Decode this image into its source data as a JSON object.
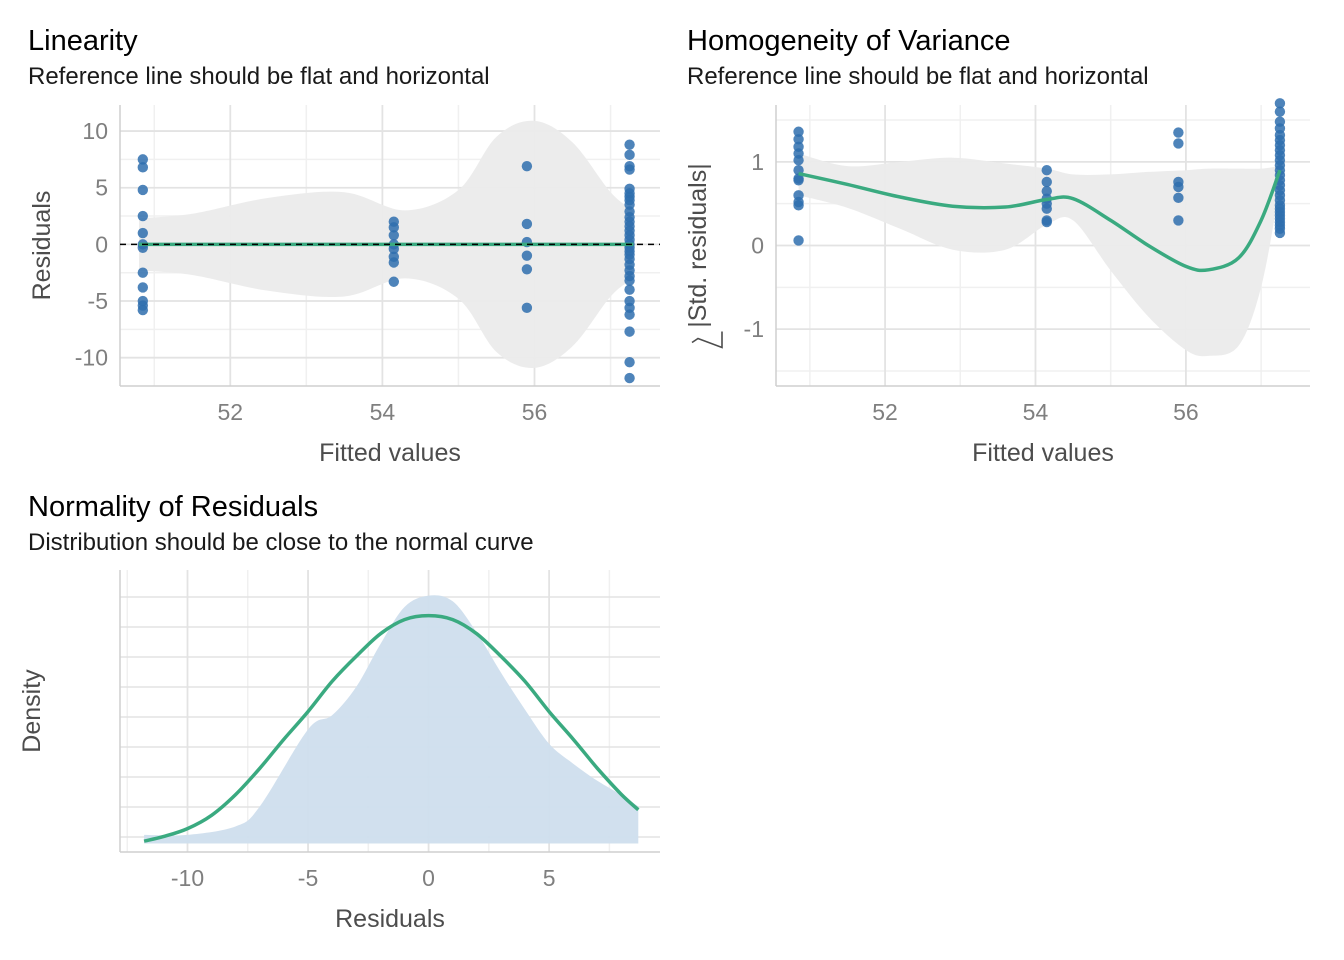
{
  "chart_data": [
    {
      "id": "linearity",
      "type": "scatter",
      "title": "Linearity",
      "subtitle": "Reference line should be flat and horizontal",
      "xlabel": "Fitted values",
      "ylabel": "Residuals",
      "xlim": [
        50.55,
        57.65
      ],
      "ylim": [
        -12.5,
        12.3
      ],
      "xticks": [
        52,
        54,
        56
      ],
      "yticks": [
        10,
        5,
        0,
        -5,
        -10
      ],
      "grid": true,
      "colors": {
        "points": "#2f6fae",
        "smooth": "#3aaa80",
        "band": "#ebebeb",
        "reference": "#000000"
      },
      "reference_line": 0,
      "points": [
        {
          "x": 50.85,
          "y": [
            7.5,
            6.8,
            4.8,
            2.5,
            1.0,
            0.0,
            -0.3,
            -2.5,
            -3.8,
            -5.0,
            -5.4,
            -5.8
          ]
        },
        {
          "x": 54.15,
          "y": [
            2.0,
            1.5,
            0.8,
            0.0,
            -0.4,
            -1.1,
            -1.6,
            -3.3
          ]
        },
        {
          "x": 55.9,
          "y": [
            6.9,
            1.8,
            0.2,
            -1.0,
            -2.2,
            -5.6
          ]
        },
        {
          "x": 57.25,
          "y": [
            8.8,
            7.9,
            6.9,
            6.6,
            4.9,
            4.5,
            4.2,
            3.9,
            3.5,
            2.9,
            2.4,
            2.0,
            1.6,
            1.2,
            0.8,
            0.4,
            0.0,
            -0.3,
            -0.6,
            -0.9,
            -1.3,
            -1.8,
            -2.3,
            -2.8,
            -3.2,
            -4.0,
            -5.0,
            -5.6,
            -6.2,
            -7.7,
            -10.4,
            -11.8
          ]
        }
      ],
      "smooth": {
        "x": [
          50.8,
          57.3
        ],
        "y": [
          0,
          0
        ]
      },
      "band": {
        "x": [
          50.8,
          51.5,
          52.5,
          53.5,
          54.3,
          55.0,
          55.5,
          56.0,
          56.5,
          57.0,
          57.3
        ],
        "upper": [
          2.3,
          2.7,
          4.1,
          4.6,
          3.0,
          4.8,
          9.5,
          10.9,
          9.0,
          4.6,
          3.0
        ],
        "lower": [
          -2.3,
          -2.7,
          -4.1,
          -4.6,
          -3.0,
          -4.8,
          -9.5,
          -10.9,
          -9.0,
          -4.6,
          -3.0
        ]
      }
    },
    {
      "id": "homogeneity",
      "type": "scatter",
      "title": "Homogeneity of Variance",
      "subtitle": "Reference line should be flat and horizontal",
      "xlabel": "Fitted values",
      "ylabel": "|Std. residuals|",
      "xlim": [
        50.55,
        57.65
      ],
      "ylim": [
        -1.68,
        1.68
      ],
      "xticks": [
        52,
        54,
        56
      ],
      "yticks": [
        1,
        0,
        -1
      ],
      "grid": true,
      "colors": {
        "points": "#2f6fae",
        "smooth": "#3aaa80",
        "band": "#ebebeb"
      },
      "points": [
        {
          "x": 50.85,
          "y": [
            1.36,
            1.27,
            1.18,
            1.1,
            1.02,
            0.9,
            0.8,
            0.78,
            0.6,
            0.52,
            0.48,
            0.06
          ]
        },
        {
          "x": 54.15,
          "y": [
            0.9,
            0.76,
            0.65,
            0.56,
            0.5,
            0.44,
            0.3,
            0.28
          ]
        },
        {
          "x": 55.9,
          "y": [
            1.35,
            1.22,
            0.76,
            0.7,
            0.57,
            0.3
          ]
        },
        {
          "x": 57.25,
          "y": [
            1.7,
            1.6,
            1.48,
            1.4,
            1.32,
            1.26,
            1.2,
            1.14,
            1.08,
            1.02,
            0.96,
            0.9,
            0.84,
            0.78,
            0.72,
            0.66,
            0.6,
            0.54,
            0.48,
            0.44,
            0.4,
            0.36,
            0.32,
            0.28,
            0.24,
            0.2,
            0.15
          ]
        }
      ],
      "smooth": {
        "x": [
          50.85,
          51.5,
          52.2,
          52.9,
          53.6,
          54.15,
          54.5,
          55.0,
          55.5,
          56.0,
          56.3,
          56.7,
          57.0,
          57.25
        ],
        "y": [
          0.86,
          0.73,
          0.58,
          0.47,
          0.46,
          0.55,
          0.56,
          0.3,
          0.0,
          -0.25,
          -0.29,
          -0.15,
          0.3,
          0.9
        ]
      },
      "band": {
        "x": [
          50.85,
          51.5,
          52.2,
          52.9,
          53.6,
          54.15,
          54.5,
          55.0,
          55.5,
          56.0,
          56.3,
          56.7,
          57.0,
          57.25
        ],
        "upper": [
          1.1,
          0.95,
          1.0,
          1.05,
          0.98,
          0.92,
          0.85,
          0.85,
          0.88,
          0.9,
          0.92,
          0.92,
          0.92,
          0.95
        ],
        "lower": [
          0.6,
          0.45,
          0.2,
          -0.05,
          -0.05,
          0.25,
          0.3,
          -0.3,
          -0.85,
          -1.25,
          -1.32,
          -1.2,
          -0.5,
          0.7
        ]
      }
    },
    {
      "id": "normality",
      "type": "area",
      "title": "Normality of Residuals",
      "subtitle": "Distribution should be close to the normal curve",
      "xlabel": "Residuals",
      "ylabel": "Density",
      "xlim": [
        -12.8,
        9.6
      ],
      "ylim": [
        -0.003,
        0.096
      ],
      "xticks": [
        -10,
        -5,
        0,
        5
      ],
      "yticks": [],
      "grid": true,
      "colors": {
        "density_fill": "#cfdeed",
        "normal_curve": "#3aaa80"
      },
      "density": {
        "x": [
          -11.8,
          -10,
          -8,
          -7,
          -5,
          -4,
          -3,
          -2,
          -1,
          0,
          1,
          2,
          3,
          4,
          5,
          6,
          7,
          8,
          8.7
        ],
        "y": [
          0.003,
          0.003,
          0.006,
          0.013,
          0.04,
          0.045,
          0.055,
          0.07,
          0.083,
          0.087,
          0.085,
          0.074,
          0.06,
          0.047,
          0.035,
          0.028,
          0.022,
          0.017,
          0.013
        ]
      },
      "normal_curve": {
        "x": [
          -11.8,
          -11,
          -10,
          -9,
          -8,
          -7,
          -6,
          -5,
          -4,
          -3,
          -2,
          -1,
          0,
          1,
          2,
          3,
          4,
          5,
          6,
          7,
          8,
          8.7
        ],
        "y": [
          0.0008,
          0.0024,
          0.0052,
          0.0099,
          0.0172,
          0.0264,
          0.0366,
          0.0463,
          0.0569,
          0.0657,
          0.0736,
          0.0786,
          0.08,
          0.0786,
          0.0736,
          0.0657,
          0.0569,
          0.0463,
          0.0366,
          0.0264,
          0.0172,
          0.0118
        ]
      }
    }
  ]
}
